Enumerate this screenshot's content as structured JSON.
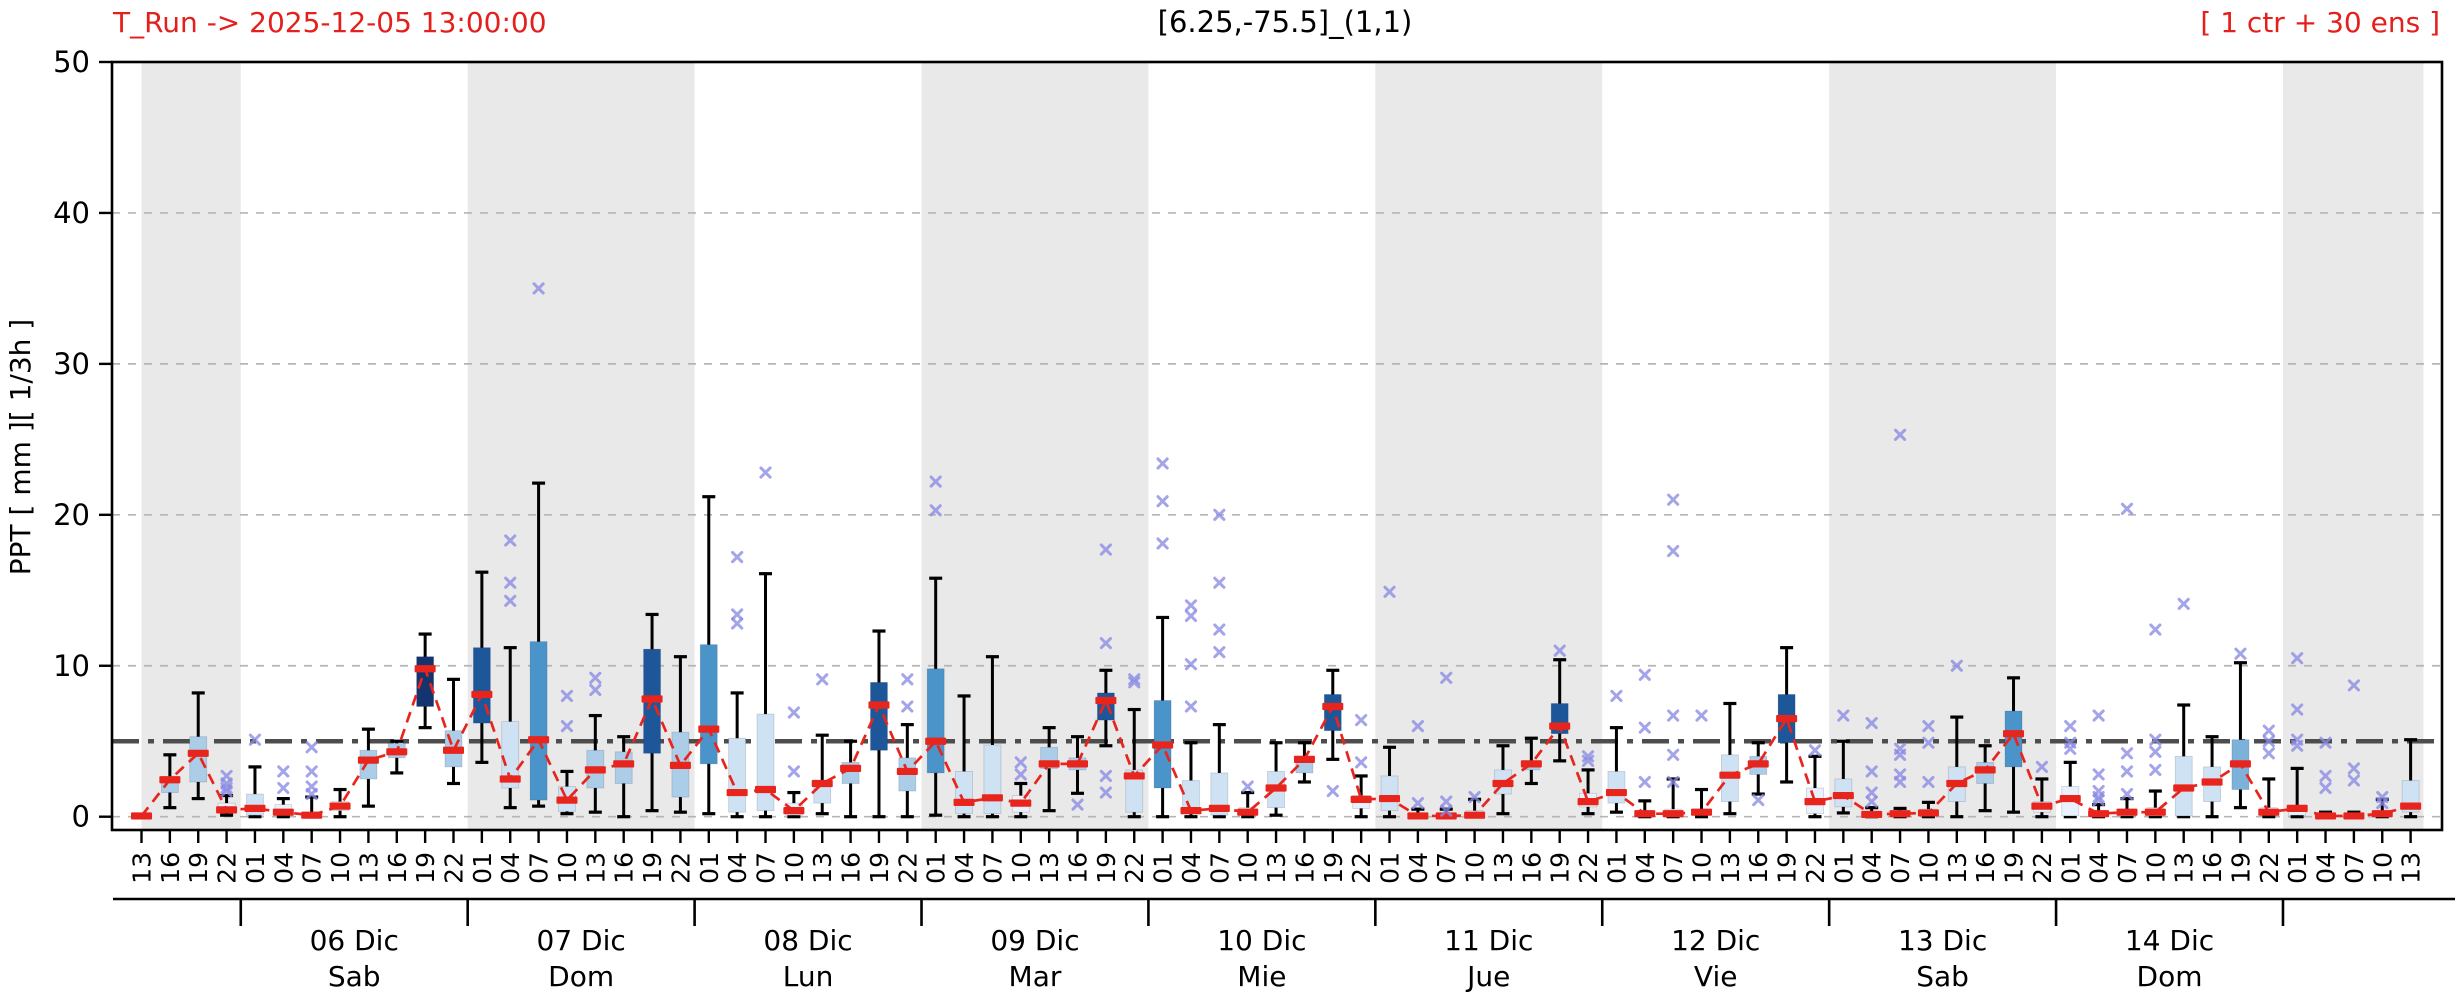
{
  "header": {
    "t_run": "T_Run -> 2025-12-05  13:00:00",
    "title": "[6.25,-75.5]_(1,1)",
    "ens": "[ 1 ctr + 30 ens ]"
  },
  "chart_data": {
    "type": "boxplot",
    "title": "[6.25,-75.5]_(1,1)",
    "ylabel": "PPT  [ mm ][ 1/3h ]",
    "ylim": [
      -0.9,
      50
    ],
    "yticks": [
      0,
      10,
      20,
      30,
      40,
      50
    ],
    "gridlines": [
      0,
      10,
      20,
      30,
      40
    ],
    "threshold": 5,
    "x_axis_unit": "hours, 3-hourly steps",
    "days": [
      {
        "label": "06 Dic",
        "sub": "Sab",
        "center": 8.5
      },
      {
        "label": "07 Dic",
        "sub": "Dom",
        "center": 16.5
      },
      {
        "label": "08 Dic",
        "sub": "Lun",
        "center": 24.5
      },
      {
        "label": "09 Dic",
        "sub": "Mar",
        "center": 32.5
      },
      {
        "label": "10 Dic",
        "sub": "Mie",
        "center": 40.5
      },
      {
        "label": "11 Dic",
        "sub": "Jue",
        "center": 48.5
      },
      {
        "label": "12 Dic",
        "sub": "Vie",
        "center": 56.5
      },
      {
        "label": "13 Dic",
        "sub": "Sab",
        "center": 64.5
      },
      {
        "label": "14 Dic",
        "sub": "Dom",
        "center": 72.5
      }
    ],
    "day_separators": [
      4.5,
      12.5,
      20.5,
      28.5,
      36.5,
      44.5,
      52.5,
      60.5,
      68.5,
      76.5
    ],
    "shaded_spans": [
      [
        1,
        4.5
      ],
      [
        12.5,
        20.5
      ],
      [
        28.5,
        36.5
      ],
      [
        44.5,
        52.5
      ],
      [
        60.5,
        68.5
      ],
      [
        76.5,
        81.45
      ]
    ],
    "colors": {
      "navy": "#14346f",
      "dark": "#1d5799",
      "medium": "#4b94c9",
      "light_medium": "#7cb1da",
      "light": "#abcde8",
      "pale": "#cfe2f3",
      "white_blue": "#e9f1fb",
      "median": "#e8251d",
      "median_line": "#e8251d",
      "whisker": "#000000",
      "flier": "#8b8be4",
      "band": "#e9e9e9",
      "grid": "#b5b5b5",
      "threshold_line": "#4d4d4d",
      "accent_text": "#e3201b"
    },
    "boxes": [
      {
        "h": "13",
        "lo": 0,
        "q1": 0,
        "med": 0.05,
        "q3": 0.1,
        "hi": 0.15,
        "c": "white_blue",
        "fliers": []
      },
      {
        "h": "16",
        "lo": 0.6,
        "q1": 1.6,
        "med": 2.45,
        "q3": 2.6,
        "hi": 4.1,
        "c": "light",
        "fliers": []
      },
      {
        "h": "19",
        "lo": 1.2,
        "q1": 2.3,
        "med": 4.2,
        "q3": 5.3,
        "hi": 8.2,
        "c": "light",
        "fliers": []
      },
      {
        "h": "22",
        "lo": 0.1,
        "q1": 0.3,
        "med": 0.45,
        "q3": 0.9,
        "hi": 1.4,
        "c": "white_blue",
        "fliers": [
          2.7,
          2.2,
          1.9,
          1.7
        ]
      },
      {
        "h": "01",
        "lo": 0,
        "q1": 0.1,
        "med": 0.55,
        "q3": 1.5,
        "hi": 3.3,
        "c": "pale",
        "fliers": [
          5.1
        ]
      },
      {
        "h": "04",
        "lo": 0,
        "q1": 0.1,
        "med": 0.3,
        "q3": 0.8,
        "hi": 1.2,
        "c": "white_blue",
        "fliers": [
          3.0,
          1.9
        ]
      },
      {
        "h": "07",
        "lo": 0,
        "q1": 0.05,
        "med": 0.1,
        "q3": 0.3,
        "hi": 1.3,
        "c": "white_blue",
        "fliers": [
          4.6,
          3.0,
          2.0,
          1.5
        ]
      },
      {
        "h": "10",
        "lo": 0,
        "q1": 0.4,
        "med": 0.7,
        "q3": 1.0,
        "hi": 1.8,
        "c": "white_blue",
        "fliers": []
      },
      {
        "h": "13",
        "lo": 0.7,
        "q1": 2.5,
        "med": 3.75,
        "q3": 4.4,
        "hi": 5.8,
        "c": "light",
        "fliers": []
      },
      {
        "h": "16",
        "lo": 2.9,
        "q1": 3.9,
        "med": 4.3,
        "q3": 4.86,
        "hi": 5.0,
        "c": "light",
        "fliers": []
      },
      {
        "h": "19",
        "lo": 5.9,
        "q1": 7.3,
        "med": 9.8,
        "q3": 10.6,
        "hi": 12.1,
        "c": "navy",
        "fliers": []
      },
      {
        "h": "22",
        "lo": 2.2,
        "q1": 3.3,
        "med": 4.4,
        "q3": 5.7,
        "hi": 9.1,
        "c": "light",
        "fliers": []
      },
      {
        "h": "01",
        "lo": 3.6,
        "q1": 6.2,
        "med": 8.1,
        "q3": 11.2,
        "hi": 16.2,
        "c": "dark",
        "fliers": []
      },
      {
        "h": "04",
        "lo": 0.6,
        "q1": 1.9,
        "med": 2.5,
        "q3": 6.3,
        "hi": 11.2,
        "c": "pale",
        "fliers": [
          18.3,
          15.5,
          14.3
        ]
      },
      {
        "h": "07",
        "lo": 0.7,
        "q1": 1.1,
        "med": 5.1,
        "q3": 11.6,
        "hi": 22.1,
        "c": "medium",
        "fliers": [
          35.0
        ]
      },
      {
        "h": "10",
        "lo": 0.2,
        "q1": 0.35,
        "med": 1.1,
        "q3": 2.0,
        "hi": 3.0,
        "c": "pale",
        "fliers": [
          8.0,
          6.0
        ]
      },
      {
        "h": "13",
        "lo": 0.3,
        "q1": 1.9,
        "med": 3.1,
        "q3": 4.4,
        "hi": 6.7,
        "c": "light",
        "fliers": [
          9.2,
          8.4
        ]
      },
      {
        "h": "16",
        "lo": 0,
        "q1": 2.2,
        "med": 3.5,
        "q3": 4.3,
        "hi": 5.3,
        "c": "light",
        "fliers": []
      },
      {
        "h": "19",
        "lo": 0.4,
        "q1": 4.2,
        "med": 7.8,
        "q3": 11.1,
        "hi": 13.4,
        "c": "dark",
        "fliers": []
      },
      {
        "h": "22",
        "lo": 0.3,
        "q1": 1.3,
        "med": 3.4,
        "q3": 5.6,
        "hi": 10.6,
        "c": "light",
        "fliers": []
      },
      {
        "h": "01",
        "lo": 0.2,
        "q1": 3.5,
        "med": 5.8,
        "q3": 11.4,
        "hi": 21.2,
        "c": "medium",
        "fliers": []
      },
      {
        "h": "04",
        "lo": 0,
        "q1": 0.3,
        "med": 1.6,
        "q3": 5.2,
        "hi": 8.2,
        "c": "pale",
        "fliers": [
          17.2,
          13.4,
          12.8
        ]
      },
      {
        "h": "07",
        "lo": 0,
        "q1": 0.4,
        "med": 1.8,
        "q3": 6.8,
        "hi": 16.1,
        "c": "pale",
        "fliers": [
          22.8
        ]
      },
      {
        "h": "10",
        "lo": 0,
        "q1": 0.1,
        "med": 0.4,
        "q3": 0.9,
        "hi": 1.6,
        "c": "white_blue",
        "fliers": [
          6.9,
          3.0
        ]
      },
      {
        "h": "13",
        "lo": 0.2,
        "q1": 0.9,
        "med": 2.2,
        "q3": 2.3,
        "hi": 5.4,
        "c": "pale",
        "fliers": [
          9.1
        ]
      },
      {
        "h": "16",
        "lo": 0,
        "q1": 2.2,
        "med": 3.2,
        "q3": 3.6,
        "hi": 5.0,
        "c": "light",
        "fliers": []
      },
      {
        "h": "19",
        "lo": 0,
        "q1": 4.4,
        "med": 7.4,
        "q3": 8.9,
        "hi": 12.3,
        "c": "dark",
        "fliers": []
      },
      {
        "h": "22",
        "lo": 0,
        "q1": 1.7,
        "med": 3.0,
        "q3": 3.9,
        "hi": 6.1,
        "c": "light",
        "fliers": [
          9.1,
          7.3
        ]
      },
      {
        "h": "01",
        "lo": 0.1,
        "q1": 2.9,
        "med": 5.0,
        "q3": 9.8,
        "hi": 15.8,
        "c": "medium",
        "fliers": [
          22.2,
          20.3
        ]
      },
      {
        "h": "04",
        "lo": 0,
        "q1": 0.2,
        "med": 0.95,
        "q3": 3.0,
        "hi": 8.0,
        "c": "pale",
        "fliers": []
      },
      {
        "h": "07",
        "lo": 0,
        "q1": 0.2,
        "med": 1.25,
        "q3": 4.75,
        "hi": 10.6,
        "c": "pale",
        "fliers": []
      },
      {
        "h": "10",
        "lo": 0,
        "q1": 0.3,
        "med": 0.9,
        "q3": 1.4,
        "hi": 2.2,
        "c": "white_blue",
        "fliers": [
          3.6,
          2.8
        ]
      },
      {
        "h": "13",
        "lo": 0.4,
        "q1": 3.2,
        "med": 3.5,
        "q3": 4.6,
        "hi": 5.9,
        "c": "light",
        "fliers": []
      },
      {
        "h": "16",
        "lo": 1.55,
        "q1": 3.1,
        "med": 3.5,
        "q3": 3.9,
        "hi": 5.3,
        "c": "light",
        "fliers": [
          0.8
        ]
      },
      {
        "h": "19",
        "lo": 4.7,
        "q1": 6.4,
        "med": 7.7,
        "q3": 8.2,
        "hi": 9.7,
        "c": "dark",
        "fliers": [
          17.7,
          11.5,
          2.7,
          1.6
        ]
      },
      {
        "h": "22",
        "lo": 0,
        "q1": 0.3,
        "med": 2.7,
        "q3": 3.1,
        "hi": 7.1,
        "c": "pale",
        "fliers": [
          9.1,
          8.9
        ]
      },
      {
        "h": "01",
        "lo": 0,
        "q1": 1.9,
        "med": 4.75,
        "q3": 7.7,
        "hi": 13.2,
        "c": "medium",
        "fliers": [
          23.4,
          20.9,
          18.1
        ]
      },
      {
        "h": "04",
        "lo": 0,
        "q1": 0.2,
        "med": 0.4,
        "q3": 2.4,
        "hi": 4.9,
        "c": "pale",
        "fliers": [
          14.0,
          13.3,
          10.1,
          7.3
        ]
      },
      {
        "h": "07",
        "lo": 0,
        "q1": 0.1,
        "med": 0.55,
        "q3": 2.9,
        "hi": 6.1,
        "c": "pale",
        "fliers": [
          20.0,
          15.5,
          12.4,
          10.9
        ]
      },
      {
        "h": "10",
        "lo": 0,
        "q1": 0.1,
        "med": 0.3,
        "q3": 0.6,
        "hi": 1.6,
        "c": "white_blue",
        "fliers": [
          2.0
        ]
      },
      {
        "h": "13",
        "lo": 0.1,
        "q1": 0.6,
        "med": 1.9,
        "q3": 3.0,
        "hi": 4.9,
        "c": "pale",
        "fliers": []
      },
      {
        "h": "16",
        "lo": 2.3,
        "q1": 2.9,
        "med": 3.8,
        "q3": 4.0,
        "hi": 4.9,
        "c": "light",
        "fliers": []
      },
      {
        "h": "19",
        "lo": 3.8,
        "q1": 5.7,
        "med": 7.3,
        "q3": 8.1,
        "hi": 9.7,
        "c": "dark",
        "fliers": [
          1.7
        ]
      },
      {
        "h": "22",
        "lo": 0,
        "q1": 0.55,
        "med": 1.15,
        "q3": 1.4,
        "hi": 2.7,
        "c": "white_blue",
        "fliers": [
          6.4,
          3.6
        ]
      },
      {
        "h": "01",
        "lo": 0,
        "q1": 0.4,
        "med": 1.2,
        "q3": 2.7,
        "hi": 4.6,
        "c": "pale",
        "fliers": [
          14.9
        ]
      },
      {
        "h": "04",
        "lo": 0,
        "q1": 0,
        "med": 0.05,
        "q3": 0.2,
        "hi": 0.5,
        "c": "white_blue",
        "fliers": [
          6.0,
          0.9
        ]
      },
      {
        "h": "07",
        "lo": 0,
        "q1": 0,
        "med": 0.05,
        "q3": 0.2,
        "hi": 0.5,
        "c": "white_blue",
        "fliers": [
          9.2,
          1.0,
          0.4
        ]
      },
      {
        "h": "10",
        "lo": 0,
        "q1": 0.05,
        "med": 0.1,
        "q3": 0.4,
        "hi": 1.15,
        "c": "white_blue",
        "fliers": [
          1.3
        ]
      },
      {
        "h": "13",
        "lo": 0.2,
        "q1": 1.5,
        "med": 2.2,
        "q3": 3.1,
        "hi": 4.7,
        "c": "pale",
        "fliers": []
      },
      {
        "h": "16",
        "lo": 2.2,
        "q1": 3.1,
        "med": 3.5,
        "q3": 3.7,
        "hi": 5.2,
        "c": "light",
        "fliers": []
      },
      {
        "h": "19",
        "lo": 3.7,
        "q1": 5.5,
        "med": 6.0,
        "q3": 7.5,
        "hi": 10.4,
        "c": "dark",
        "fliers": [
          11.0
        ]
      },
      {
        "h": "22",
        "lo": 0.2,
        "q1": 0.65,
        "med": 1.0,
        "q3": 1.55,
        "hi": 3.1,
        "c": "white_blue",
        "fliers": [
          4.0,
          3.7
        ]
      },
      {
        "h": "01",
        "lo": 0.3,
        "q1": 0.9,
        "med": 1.6,
        "q3": 3.0,
        "hi": 5.9,
        "c": "pale",
        "fliers": [
          8.0
        ]
      },
      {
        "h": "04",
        "lo": 0,
        "q1": 0.05,
        "med": 0.2,
        "q3": 0.4,
        "hi": 1.05,
        "c": "white_blue",
        "fliers": [
          9.4,
          5.9,
          2.3
        ]
      },
      {
        "h": "07",
        "lo": 0,
        "q1": 0.05,
        "med": 0.2,
        "q3": 0.5,
        "hi": 2.5,
        "c": "white_blue",
        "fliers": [
          21.0,
          17.6,
          6.7,
          4.1,
          2.3
        ]
      },
      {
        "h": "10",
        "lo": 0,
        "q1": 0.1,
        "med": 0.3,
        "q3": 0.5,
        "hi": 1.8,
        "c": "white_blue",
        "fliers": [
          6.7
        ]
      },
      {
        "h": "13",
        "lo": 0.2,
        "q1": 1.0,
        "med": 2.75,
        "q3": 4.1,
        "hi": 7.5,
        "c": "pale",
        "fliers": []
      },
      {
        "h": "16",
        "lo": 1.5,
        "q1": 2.8,
        "med": 3.5,
        "q3": 4.0,
        "hi": 4.9,
        "c": "light",
        "fliers": [
          1.1
        ]
      },
      {
        "h": "19",
        "lo": 2.3,
        "q1": 4.9,
        "med": 6.5,
        "q3": 8.1,
        "hi": 11.2,
        "c": "dark",
        "fliers": []
      },
      {
        "h": "22",
        "lo": 0,
        "q1": 0.2,
        "med": 1.0,
        "q3": 1.9,
        "hi": 4.0,
        "c": "white_blue",
        "fliers": [
          4.4
        ]
      },
      {
        "h": "01",
        "lo": 0.25,
        "q1": 0.65,
        "med": 1.4,
        "q3": 2.5,
        "hi": 5.0,
        "c": "pale",
        "fliers": [
          6.7
        ]
      },
      {
        "h": "04",
        "lo": 0,
        "q1": 0,
        "med": 0.15,
        "q3": 0.3,
        "hi": 0.6,
        "c": "white_blue",
        "fliers": [
          6.2,
          3.0,
          1.6,
          1.0
        ]
      },
      {
        "h": "07",
        "lo": 0,
        "q1": 0,
        "med": 0.2,
        "q3": 0.35,
        "hi": 0.55,
        "c": "white_blue",
        "fliers": [
          25.3,
          4.5,
          4.1,
          2.8,
          2.3
        ]
      },
      {
        "h": "10",
        "lo": 0,
        "q1": 0.1,
        "med": 0.25,
        "q3": 0.5,
        "hi": 0.95,
        "c": "white_blue",
        "fliers": [
          6.0,
          4.9,
          2.3
        ]
      },
      {
        "h": "13",
        "lo": 0,
        "q1": 1.0,
        "med": 2.2,
        "q3": 3.3,
        "hi": 6.6,
        "c": "pale",
        "fliers": [
          10.0
        ]
      },
      {
        "h": "16",
        "lo": 0.4,
        "q1": 2.2,
        "med": 3.1,
        "q3": 3.6,
        "hi": 4.7,
        "c": "light",
        "fliers": []
      },
      {
        "h": "19",
        "lo": 0.3,
        "q1": 3.3,
        "med": 5.5,
        "q3": 7.0,
        "hi": 9.2,
        "c": "medium",
        "fliers": []
      },
      {
        "h": "22",
        "lo": 0,
        "q1": 0.3,
        "med": 0.7,
        "q3": 1.0,
        "hi": 2.5,
        "c": "white_blue",
        "fliers": [
          3.3
        ]
      },
      {
        "h": "01",
        "lo": 0,
        "q1": 0.05,
        "med": 1.2,
        "q3": 2.0,
        "hi": 3.6,
        "c": "white_blue",
        "fliers": [
          6.0,
          4.9,
          4.5
        ]
      },
      {
        "h": "04",
        "lo": 0,
        "q1": 0.05,
        "med": 0.2,
        "q3": 0.3,
        "hi": 0.8,
        "c": "white_blue",
        "fliers": [
          6.7,
          2.8,
          1.7,
          1.3,
          1.1
        ]
      },
      {
        "h": "07",
        "lo": 0,
        "q1": 0.05,
        "med": 0.3,
        "q3": 0.5,
        "hi": 1.2,
        "c": "white_blue",
        "fliers": [
          20.4,
          4.2,
          3.0,
          1.5
        ]
      },
      {
        "h": "10",
        "lo": 0,
        "q1": 0.05,
        "med": 0.3,
        "q3": 0.6,
        "hi": 1.7,
        "c": "white_blue",
        "fliers": [
          12.4,
          5.1,
          4.3,
          3.1
        ]
      },
      {
        "h": "13",
        "lo": 0,
        "q1": 0.05,
        "med": 1.9,
        "q3": 4.0,
        "hi": 7.4,
        "c": "pale",
        "fliers": [
          14.1
        ]
      },
      {
        "h": "16",
        "lo": 0,
        "q1": 1.0,
        "med": 2.3,
        "q3": 3.3,
        "hi": 5.3,
        "c": "pale",
        "fliers": []
      },
      {
        "h": "19",
        "lo": 0.6,
        "q1": 1.8,
        "med": 3.5,
        "q3": 5.1,
        "hi": 10.2,
        "c": "light_medium",
        "fliers": [
          10.8
        ]
      },
      {
        "h": "22",
        "lo": 0,
        "q1": 0.1,
        "med": 0.3,
        "q3": 0.6,
        "hi": 2.5,
        "c": "white_blue",
        "fliers": [
          5.7,
          5.0,
          4.2
        ]
      },
      {
        "h": "01",
        "lo": 0,
        "q1": 0.1,
        "med": 0.55,
        "q3": 0.7,
        "hi": 3.2,
        "c": "white_blue",
        "fliers": [
          10.5,
          7.1,
          5.1,
          4.7
        ]
      },
      {
        "h": "04",
        "lo": 0,
        "q1": 0,
        "med": 0.05,
        "q3": 0.1,
        "hi": 0.3,
        "c": "white_blue",
        "fliers": [
          4.9,
          2.7,
          1.9
        ]
      },
      {
        "h": "07",
        "lo": 0,
        "q1": 0,
        "med": 0.05,
        "q3": 0.1,
        "hi": 0.3,
        "c": "white_blue",
        "fliers": [
          8.7,
          3.2,
          2.4
        ]
      },
      {
        "h": "10",
        "lo": 0,
        "q1": 0.05,
        "med": 0.2,
        "q3": 0.4,
        "hi": 1.15,
        "c": "white_blue",
        "fliers": [
          1.3,
          0.9
        ]
      },
      {
        "h": "13",
        "lo": 0,
        "q1": 0.3,
        "med": 0.7,
        "q3": 2.4,
        "hi": 5.1,
        "c": "pale",
        "fliers": []
      }
    ]
  }
}
